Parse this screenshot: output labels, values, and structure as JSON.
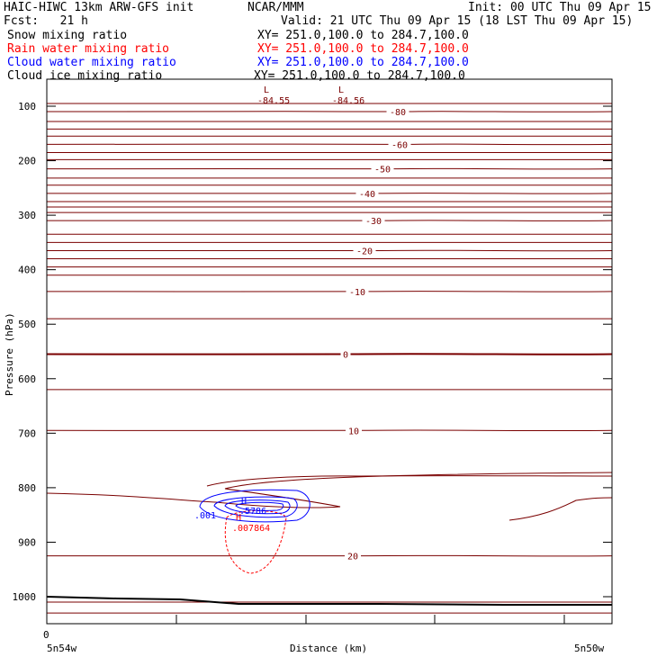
{
  "header": {
    "model": "HAIC-HIWC 13km ARW-GFS init",
    "center": "NCAR/MMM",
    "init": "Init: 00 UTC Thu 09 Apr 15",
    "fcst": "Fcst:   21 h",
    "valid": "Valid: 21 UTC Thu 09 Apr 15 (18 LST Thu 09 Apr 15)",
    "fields": [
      {
        "name": "Snow mixing ratio",
        "xy": "XY= 251.0,100.0 to 284.7,100.0",
        "color": "#000000"
      },
      {
        "name": "Rain water mixing ratio",
        "xy": "XY= 251.0,100.0 to 284.7,100.0",
        "color": "#ff0000"
      },
      {
        "name": "Cloud water mixing ratio",
        "xy": "XY= 251.0,100.0 to 284.7,100.0",
        "color": "#0000ff"
      },
      {
        "name": "Cloud ice mixing ratio",
        "xy": "XY= 251.0,100.0 to 284.7,100.0",
        "color": "#000000"
      }
    ]
  },
  "chart_data": {
    "type": "contour",
    "xlabel": "Distance (km)",
    "ylabel": "Pressure (hPa)",
    "x_tick_labels": [
      "0"
    ],
    "x_end_labels": {
      "left": "5n54w",
      "right": "5n50w"
    },
    "yticks": [
      100,
      200,
      300,
      400,
      500,
      600,
      700,
      800,
      900,
      1000
    ],
    "ylim": [
      1050,
      50
    ],
    "temperature_contour_labels": [
      {
        "text": "-80",
        "p": 110
      },
      {
        "text": "-60",
        "p": 170
      },
      {
        "text": "-50",
        "p": 215
      },
      {
        "text": "-40",
        "p": 260
      },
      {
        "text": "-30",
        "p": 310
      },
      {
        "text": "-20",
        "p": 365
      },
      {
        "text": "-10",
        "p": 440
      },
      {
        "text": "0",
        "p": 555
      },
      {
        "text": "10",
        "p": 695
      },
      {
        "text": "20",
        "p": 925
      }
    ],
    "extrema": [
      {
        "symbol": "L",
        "value": "-84.55",
        "color": "#7a0000"
      },
      {
        "symbol": "L",
        "value": "-84.56",
        "color": "#7a0000"
      },
      {
        "symbol": "H",
        "value": ".5786",
        "color": "#0000ff"
      },
      {
        "symbol": "H",
        "value": ".007864",
        "color": "#ff0000"
      }
    ],
    "cloud_water_contour_label": ".001",
    "colors": {
      "temperature": "#7a0000",
      "rain": "#ff0000",
      "cloud_water": "#0000ff",
      "terrain": "#000000"
    }
  }
}
